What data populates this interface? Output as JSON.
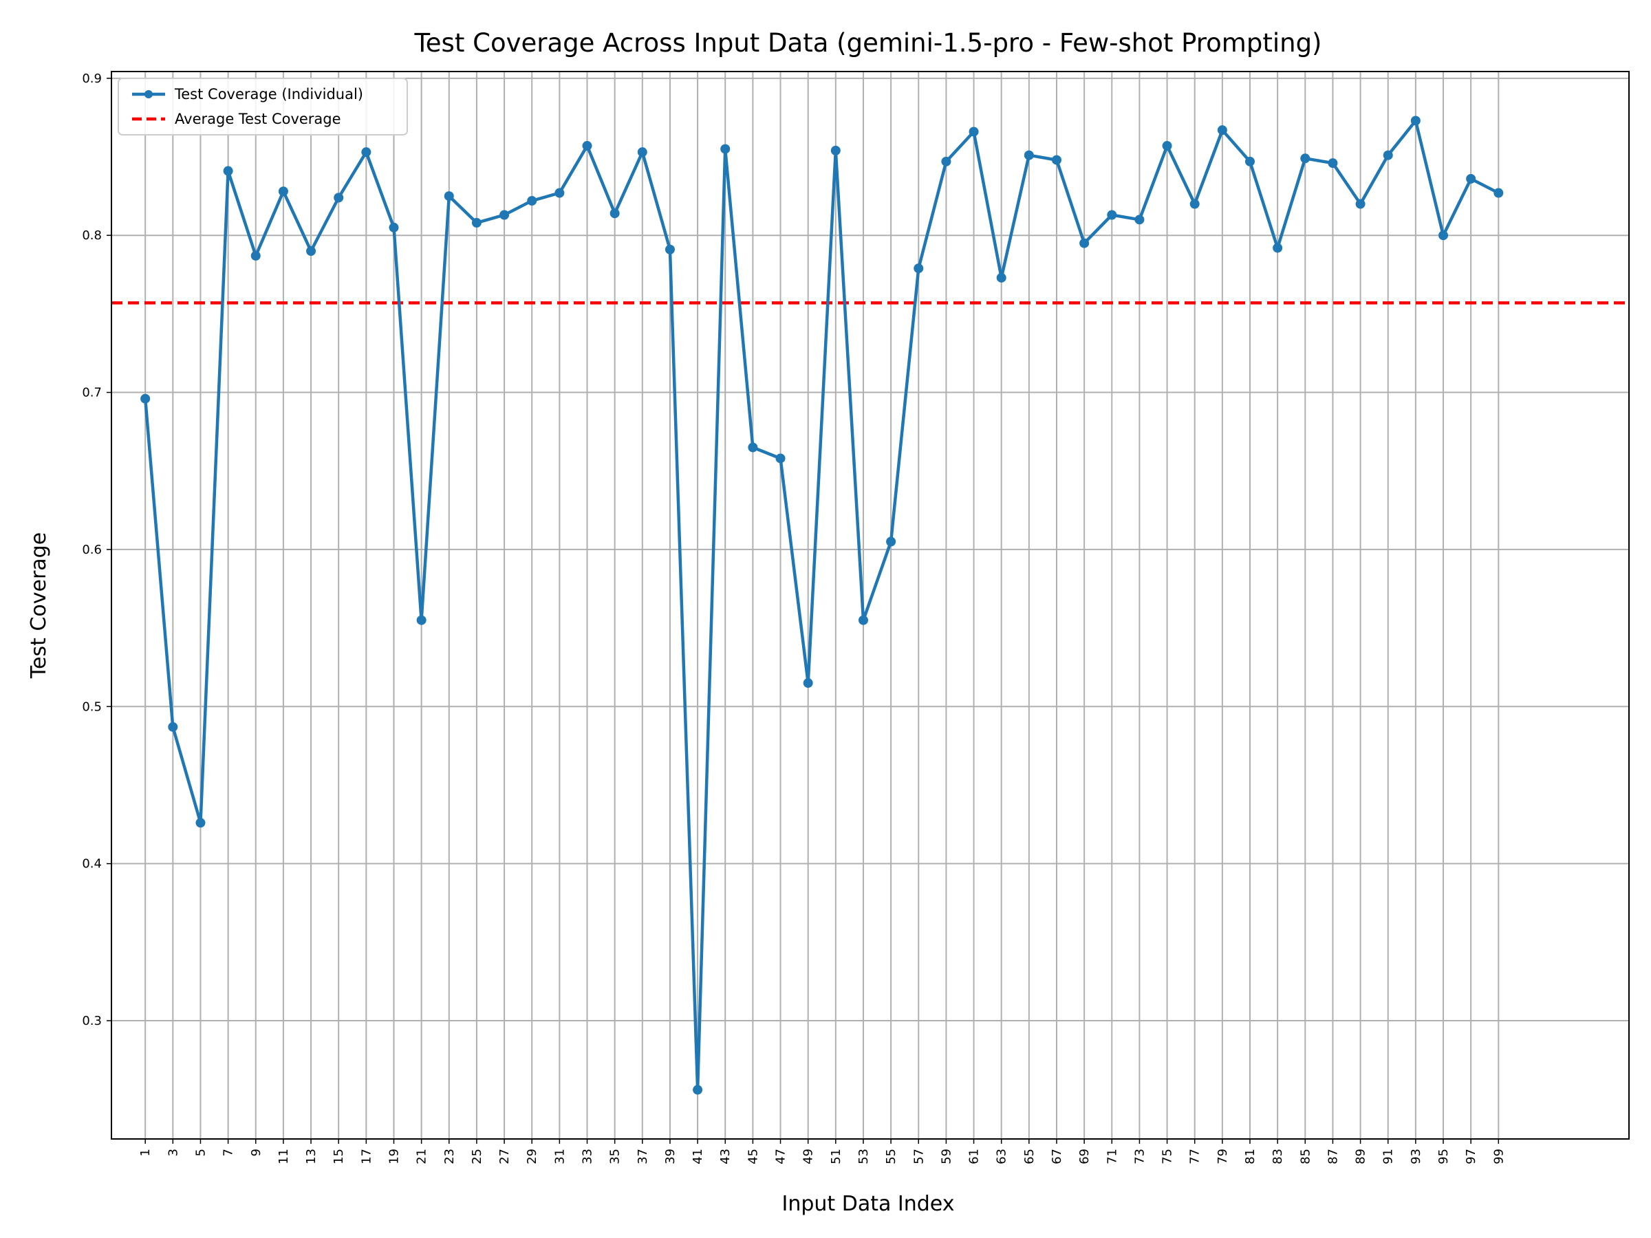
{
  "chart_data": {
    "type": "line",
    "title": "Test Coverage Across Input Data (gemini-1.5-pro - Few-shot Prompting)",
    "xlabel": "Input Data Index",
    "ylabel": "Test Coverage",
    "xlim": [
      -1.45,
      108.45
    ],
    "ylim": [
      0.2247,
      0.9043
    ],
    "xticks": [
      1,
      3,
      5,
      7,
      9,
      11,
      13,
      15,
      17,
      19,
      21,
      23,
      25,
      27,
      29,
      31,
      33,
      35,
      37,
      39,
      41,
      43,
      45,
      47,
      49,
      51,
      53,
      55,
      57,
      59,
      61,
      63,
      65,
      67,
      69,
      71,
      73,
      75,
      77,
      79,
      81,
      83,
      85,
      87,
      89,
      91,
      93,
      95,
      97,
      99
    ],
    "yticks": [
      0.3,
      0.4,
      0.5,
      0.6,
      0.7,
      0.8,
      0.9
    ],
    "ytick_labels": [
      "0.3",
      "0.4",
      "0.5",
      "0.6",
      "0.7",
      "0.8",
      "0.9"
    ],
    "grid": true,
    "legend_position": "top-left",
    "series": [
      {
        "name": "Test Coverage (Individual)",
        "color": "#1f77b4",
        "marker": "circle",
        "x": [
          1,
          3,
          5,
          7,
          9,
          11,
          13,
          15,
          17,
          19,
          21,
          23,
          25,
          27,
          29,
          31,
          33,
          35,
          37,
          39,
          41,
          43,
          45,
          47,
          49,
          51,
          53,
          55,
          57,
          59,
          61,
          63,
          65,
          67,
          69,
          71,
          73,
          75,
          77,
          79,
          81,
          83,
          85,
          87,
          89,
          91,
          93,
          95,
          97,
          99
        ],
        "y": [
          0.696,
          0.487,
          0.426,
          0.841,
          0.787,
          0.828,
          0.79,
          0.824,
          0.853,
          0.805,
          0.555,
          0.825,
          0.808,
          0.813,
          0.822,
          0.827,
          0.857,
          0.814,
          0.853,
          0.791,
          0.256,
          0.855,
          0.665,
          0.658,
          0.515,
          0.854,
          0.555,
          0.605,
          0.779,
          0.847,
          0.866,
          0.773,
          0.851,
          0.848,
          0.795,
          0.813,
          0.81,
          0.857,
          0.82,
          0.867,
          0.847,
          0.792,
          0.849,
          0.846,
          0.82,
          0.851,
          0.873,
          0.8,
          0.836,
          0.827
        ]
      },
      {
        "name": "Average Test Coverage",
        "color": "#ff0000",
        "style": "dashed",
        "y": 0.757
      }
    ]
  }
}
